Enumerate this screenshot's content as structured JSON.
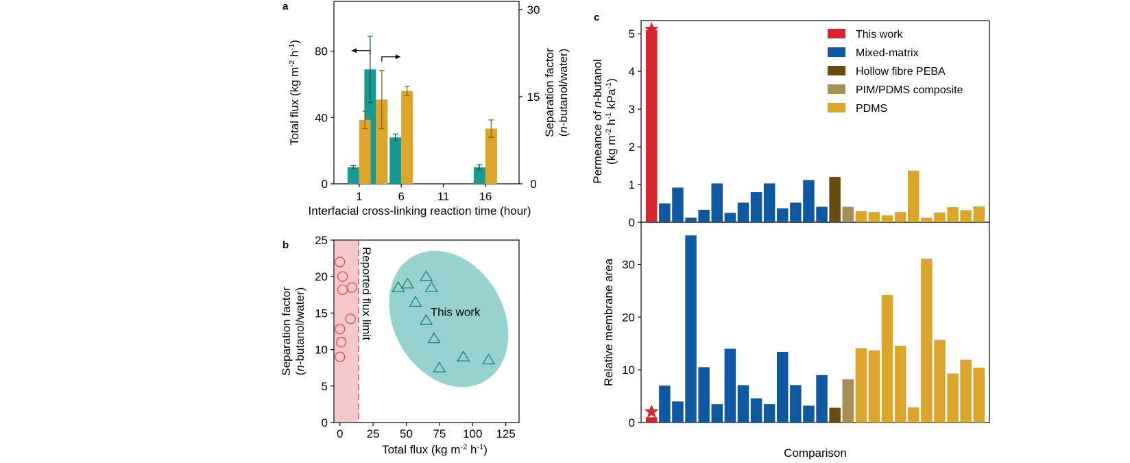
{
  "figure": {
    "panel_a_label": "a",
    "panel_b_label": "b",
    "panel_c_label": "c"
  },
  "colors": {
    "teal": "#1a9a95",
    "gold": "#dba42a",
    "red": "#d7262b",
    "blue": "#0f59a3",
    "brown": "#6b4a0f",
    "tan": "#a58f55",
    "pink_fill": "#f4c7c9",
    "ellipse_fill": "#96d3d0"
  },
  "chart_data": [
    {
      "id": "a",
      "type": "bar",
      "xlabel": "Interfacial cross-linking reaction time (hour)",
      "ylabel": "Total flux (kg m<sup>-2</sup> h<sup>-1</sup>)",
      "y2label_line1": "Separation factor",
      "y2label_line2": "(<i>n</i>-butanol/water)",
      "x_ticks": [
        "1",
        "6",
        "11",
        "16"
      ],
      "y_ticks": [
        "0",
        "40",
        "80"
      ],
      "y2_ticks": [
        "0",
        "15",
        "30"
      ],
      "xlim": [
        -2,
        20
      ],
      "ylim": [
        0,
        110
      ],
      "y2lim": [
        0,
        31.4
      ],
      "series": [
        {
          "axis": "left",
          "color": "#1a9a95",
          "points": [
            {
              "x": 1,
              "value": 10,
              "err": 1
            },
            {
              "x": 3,
              "value": 69,
              "err": 20
            },
            {
              "x": 6,
              "value": 28,
              "err": 2
            },
            {
              "x": 16,
              "value": 10,
              "err": 1.5
            }
          ]
        },
        {
          "axis": "right",
          "color": "#dba42a",
          "points": [
            {
              "x": 1,
              "value": 11,
              "err": 1.5
            },
            {
              "x": 3,
              "value": 14.5,
              "err": 5
            },
            {
              "x": 6,
              "value": 16,
              "err": 0.8
            },
            {
              "x": 16,
              "value": 9.5,
              "err": 1.5
            }
          ]
        }
      ]
    },
    {
      "id": "b",
      "type": "scatter",
      "xlabel": "Total flux (kg m<sup>-2</sup> h<sup>-1</sup>)",
      "ylabel_line1": "Separation factor",
      "ylabel_line2": "(<i>n</i>-butanol/water)",
      "x_ticks": [
        "0",
        "25",
        "50",
        "75",
        "100",
        "125"
      ],
      "y_ticks": [
        "0",
        "5",
        "10",
        "15",
        "20",
        "25"
      ],
      "xlim": [
        -4.5,
        135
      ],
      "ylim": [
        0,
        25
      ],
      "flux_limit_x": 14,
      "flux_limit_label": "Reported flux limit",
      "ellipse_label": "This work",
      "reported": [
        {
          "x": 0,
          "y": 22
        },
        {
          "x": 2,
          "y": 20
        },
        {
          "x": 2,
          "y": 18.2
        },
        {
          "x": 9,
          "y": 18.5
        },
        {
          "x": 8,
          "y": 14.2
        },
        {
          "x": 0,
          "y": 12.8
        },
        {
          "x": 1,
          "y": 11
        },
        {
          "x": 0,
          "y": 9
        }
      ],
      "this_work": [
        {
          "x": 44,
          "y": 18.5
        },
        {
          "x": 51,
          "y": 19
        },
        {
          "x": 65,
          "y": 20
        },
        {
          "x": 69,
          "y": 18.5
        },
        {
          "x": 57,
          "y": 16.5
        },
        {
          "x": 65,
          "y": 14
        },
        {
          "x": 71,
          "y": 11.5
        },
        {
          "x": 75,
          "y": 7.5
        },
        {
          "x": 93,
          "y": 9
        },
        {
          "x": 112,
          "y": 8.6
        }
      ]
    },
    {
      "id": "c",
      "type": "bar",
      "xlabel": "Comparison",
      "top_ylabel_line1": "Permeance of <i>n</i>-butanol",
      "top_ylabel_line2": "(kg m<sup>-2</sup> h<sup>-1</sup> kPa<sup>-1</sup>)",
      "bottom_ylabel": "Relative membrane area",
      "top_y_ticks": [
        "0",
        "1",
        "2",
        "3",
        "4",
        "5"
      ],
      "bottom_y_ticks": [
        "0",
        "10",
        "20",
        "30"
      ],
      "top_ylim": [
        0,
        5.35
      ],
      "bottom_ylim": [
        0,
        38
      ],
      "legend": [
        {
          "label": "This work",
          "color": "#d7262b"
        },
        {
          "label": "Mixed-matrix",
          "color": "#0f59a3"
        },
        {
          "label": "Hollow fibre PEBA",
          "color": "#6b4a0f"
        },
        {
          "label": "PIM/PDMS composite",
          "color": "#a58f55"
        },
        {
          "label": "PDMS",
          "color": "#dba42a"
        }
      ],
      "bars": [
        {
          "category": "This work",
          "permeance": 5.1,
          "area": 1
        },
        {
          "category": "Mixed-matrix",
          "permeance": 0.5,
          "area": 7
        },
        {
          "category": "Mixed-matrix",
          "permeance": 0.92,
          "area": 4
        },
        {
          "category": "Mixed-matrix",
          "permeance": 0.12,
          "area": 35.5
        },
        {
          "category": "Mixed-matrix",
          "permeance": 0.33,
          "area": 10.5
        },
        {
          "category": "Mixed-matrix",
          "permeance": 1.03,
          "area": 3.5
        },
        {
          "category": "Mixed-matrix",
          "permeance": 0.25,
          "area": 14
        },
        {
          "category": "Mixed-matrix",
          "permeance": 0.52,
          "area": 7.1
        },
        {
          "category": "Mixed-matrix",
          "permeance": 0.8,
          "area": 4.6
        },
        {
          "category": "Mixed-matrix",
          "permeance": 1.03,
          "area": 3.5
        },
        {
          "category": "Mixed-matrix",
          "permeance": 0.37,
          "area": 13.4
        },
        {
          "category": "Mixed-matrix",
          "permeance": 0.52,
          "area": 7.1
        },
        {
          "category": "Mixed-matrix",
          "permeance": 1.12,
          "area": 3.2
        },
        {
          "category": "Mixed-matrix",
          "permeance": 0.41,
          "area": 9
        },
        {
          "category": "Hollow fibre PEBA",
          "permeance": 1.2,
          "area": 2.8
        },
        {
          "category": "PIM/PDMS composite",
          "permeance": 0.41,
          "area": 8.2
        },
        {
          "category": "PDMS",
          "permeance": 0.29,
          "area": 14.1
        },
        {
          "category": "PDMS",
          "permeance": 0.27,
          "area": 13.7
        },
        {
          "category": "PDMS",
          "permeance": 0.18,
          "area": 24.2
        },
        {
          "category": "PDMS",
          "permeance": 0.27,
          "area": 14.6
        },
        {
          "category": "PDMS",
          "permeance": 1.37,
          "area": 2.9
        },
        {
          "category": "PDMS",
          "permeance": 0.12,
          "area": 31.1
        },
        {
          "category": "PDMS",
          "permeance": 0.26,
          "area": 15.7
        },
        {
          "category": "PDMS",
          "permeance": 0.4,
          "area": 9.3
        },
        {
          "category": "PDMS",
          "permeance": 0.32,
          "area": 11.9
        },
        {
          "category": "PDMS",
          "permeance": 0.42,
          "area": 10.4
        }
      ]
    }
  ]
}
